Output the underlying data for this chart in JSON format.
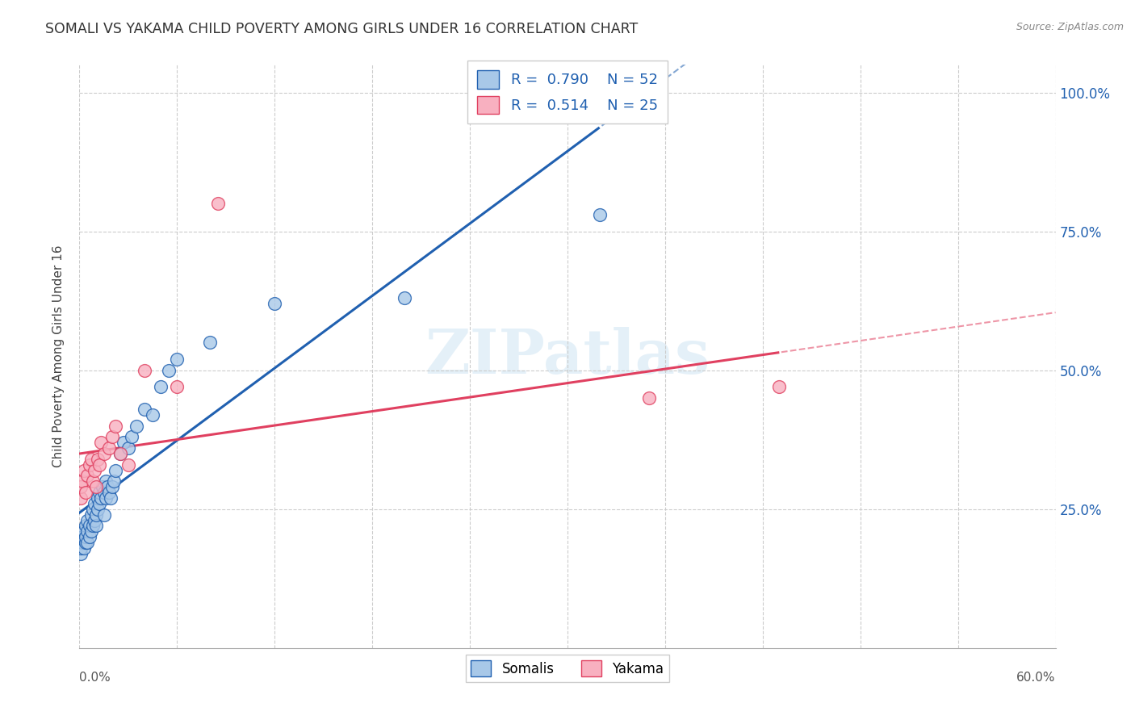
{
  "title": "SOMALI VS YAKAMA CHILD POVERTY AMONG GIRLS UNDER 16 CORRELATION CHART",
  "source": "Source: ZipAtlas.com",
  "ylabel": "Child Poverty Among Girls Under 16",
  "xlim": [
    0.0,
    0.6
  ],
  "ylim": [
    0.0,
    1.05
  ],
  "yticks": [
    0.25,
    0.5,
    0.75,
    1.0
  ],
  "ytick_labels": [
    "25.0%",
    "50.0%",
    "75.0%",
    "100.0%"
  ],
  "xtick_labels": [
    "0.0%",
    "",
    "",
    "",
    "",
    "",
    "",
    "",
    "",
    "",
    "60.0%"
  ],
  "watermark": "ZIPatlas",
  "legend_R_somali": "0.790",
  "legend_N_somali": "52",
  "legend_R_yakama": "0.514",
  "legend_N_yakama": "25",
  "somali_color": "#a8c8e8",
  "yakama_color": "#f8b0c0",
  "line_somali_color": "#2060b0",
  "line_yakama_color": "#e04060",
  "somali_x": [
    0.001,
    0.001,
    0.002,
    0.002,
    0.003,
    0.003,
    0.004,
    0.004,
    0.004,
    0.005,
    0.005,
    0.005,
    0.006,
    0.006,
    0.007,
    0.007,
    0.008,
    0.008,
    0.009,
    0.009,
    0.01,
    0.01,
    0.011,
    0.011,
    0.012,
    0.012,
    0.013,
    0.014,
    0.015,
    0.015,
    0.016,
    0.016,
    0.017,
    0.018,
    0.019,
    0.02,
    0.021,
    0.022,
    0.025,
    0.027,
    0.03,
    0.032,
    0.035,
    0.04,
    0.045,
    0.05,
    0.055,
    0.06,
    0.08,
    0.12,
    0.2,
    0.32
  ],
  "somali_y": [
    0.17,
    0.18,
    0.19,
    0.2,
    0.18,
    0.21,
    0.19,
    0.2,
    0.22,
    0.19,
    0.21,
    0.23,
    0.2,
    0.22,
    0.21,
    0.24,
    0.22,
    0.25,
    0.23,
    0.26,
    0.22,
    0.24,
    0.25,
    0.27,
    0.26,
    0.28,
    0.27,
    0.29,
    0.24,
    0.28,
    0.27,
    0.3,
    0.29,
    0.28,
    0.27,
    0.29,
    0.3,
    0.32,
    0.35,
    0.37,
    0.36,
    0.38,
    0.4,
    0.43,
    0.42,
    0.47,
    0.5,
    0.52,
    0.55,
    0.62,
    0.63,
    0.78
  ],
  "yakama_x": [
    0.001,
    0.001,
    0.002,
    0.003,
    0.004,
    0.005,
    0.006,
    0.007,
    0.008,
    0.009,
    0.01,
    0.011,
    0.012,
    0.013,
    0.015,
    0.018,
    0.02,
    0.022,
    0.025,
    0.03,
    0.04,
    0.06,
    0.085,
    0.35,
    0.43
  ],
  "yakama_y": [
    0.27,
    0.29,
    0.3,
    0.32,
    0.28,
    0.31,
    0.33,
    0.34,
    0.3,
    0.32,
    0.29,
    0.34,
    0.33,
    0.37,
    0.35,
    0.36,
    0.38,
    0.4,
    0.35,
    0.33,
    0.5,
    0.47,
    0.8,
    0.45,
    0.47
  ],
  "grid_color": "#cccccc",
  "background_color": "#ffffff"
}
